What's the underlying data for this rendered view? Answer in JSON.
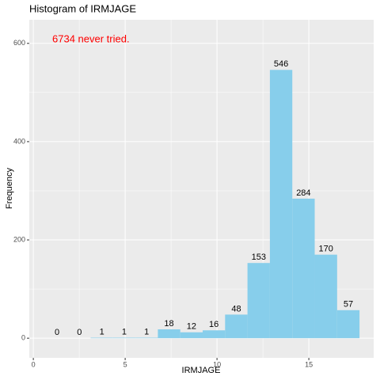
{
  "chart_data": {
    "type": "histogram",
    "title": "Histogram of IRMJAGE",
    "x_label": "IRMJAGE",
    "y_label": "Frequency",
    "annotation": "6734 never tried.",
    "annotation_color": "#ff0000",
    "bins": [
      0.68,
      1.9,
      3.12,
      4.34,
      5.56,
      6.78,
      8.0,
      9.22,
      10.44,
      11.66,
      12.88,
      14.1,
      15.32,
      16.54,
      17.76
    ],
    "values": [
      0,
      0,
      1,
      1,
      1,
      18,
      12,
      16,
      48,
      153,
      546,
      284,
      170,
      57
    ],
    "color": "#87ceeb",
    "xlim": [
      -0.22,
      18.53
    ],
    "xticks": [
      0,
      5,
      10,
      15
    ],
    "ylim": [
      -40,
      648
    ],
    "yticks": [
      0,
      200,
      400,
      600
    ],
    "grid": true
  }
}
